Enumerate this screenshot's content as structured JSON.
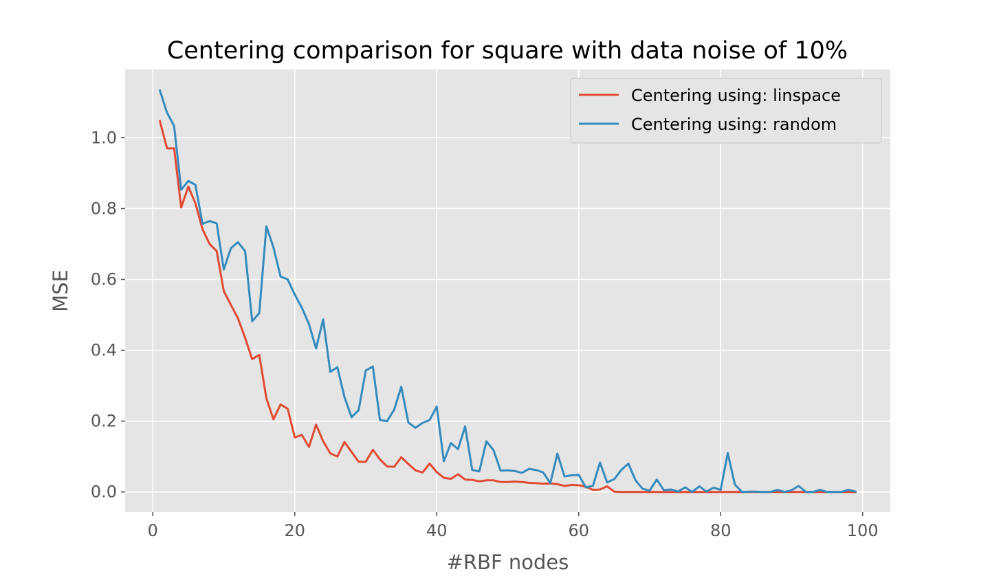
{
  "chart_data": {
    "type": "line",
    "title": "Centering comparison for square with data noise of 10%",
    "xlabel": "#RBF nodes",
    "ylabel": "MSE",
    "xlim": [
      -3.9,
      103.9
    ],
    "ylim": [
      -0.0568,
      1.1928
    ],
    "xticks": [
      0,
      20,
      40,
      60,
      80,
      100
    ],
    "xtick_labels": [
      "0",
      "20",
      "40",
      "60",
      "80",
      "100"
    ],
    "yticks": [
      0.0,
      0.2,
      0.4,
      0.6,
      0.8,
      1.0
    ],
    "ytick_labels": [
      "0.0",
      "0.2",
      "0.4",
      "0.6",
      "0.8",
      "1.0"
    ],
    "grid": true,
    "legend_position": "top-right",
    "x": [
      1,
      2,
      3,
      4,
      5,
      6,
      7,
      8,
      9,
      10,
      11,
      12,
      13,
      14,
      15,
      16,
      17,
      18,
      19,
      20,
      21,
      22,
      23,
      24,
      25,
      26,
      27,
      28,
      29,
      30,
      31,
      32,
      33,
      34,
      35,
      36,
      37,
      38,
      39,
      40,
      41,
      42,
      43,
      44,
      45,
      46,
      47,
      48,
      49,
      50,
      51,
      52,
      53,
      54,
      55,
      56,
      57,
      58,
      59,
      60,
      61,
      62,
      63,
      64,
      65,
      66,
      67,
      68,
      69,
      70,
      71,
      72,
      73,
      74,
      75,
      76,
      77,
      78,
      79,
      80,
      81,
      82,
      83,
      84,
      85,
      86,
      87,
      88,
      89,
      90,
      91,
      92,
      93,
      94,
      95,
      96,
      97,
      98,
      99
    ],
    "series": [
      {
        "name": "Centering using: linspace",
        "color": "#E24A33",
        "values": [
          1.047,
          0.97,
          0.97,
          0.803,
          0.862,
          0.815,
          0.742,
          0.7,
          0.68,
          0.567,
          0.528,
          0.49,
          0.435,
          0.375,
          0.387,
          0.264,
          0.205,
          0.247,
          0.235,
          0.154,
          0.161,
          0.127,
          0.19,
          0.143,
          0.109,
          0.1,
          0.141,
          0.113,
          0.085,
          0.085,
          0.119,
          0.092,
          0.072,
          0.071,
          0.098,
          0.079,
          0.061,
          0.055,
          0.08,
          0.056,
          0.04,
          0.037,
          0.05,
          0.035,
          0.034,
          0.03,
          0.033,
          0.033,
          0.028,
          0.028,
          0.029,
          0.028,
          0.026,
          0.025,
          0.023,
          0.024,
          0.022,
          0.017,
          0.02,
          0.019,
          0.015,
          0.006,
          0.007,
          0.016,
          0.001,
          0.0,
          0.0,
          0.0,
          0.0,
          0.0,
          0.0,
          0.0,
          0.0,
          0.0,
          0.0,
          0.0,
          0.0,
          0.0,
          0.0,
          0.0,
          0.0,
          0.0,
          0.0,
          0.0,
          0.0,
          0.0,
          0.0,
          0.0,
          0.0,
          0.0,
          0.0,
          0.0,
          0.0,
          0.0,
          0.0,
          0.0,
          0.0,
          0.0,
          0.0
        ]
      },
      {
        "name": "Centering using: random",
        "color": "#348ABD",
        "values": [
          1.133,
          1.071,
          1.033,
          0.853,
          0.878,
          0.867,
          0.757,
          0.765,
          0.758,
          0.628,
          0.688,
          0.705,
          0.68,
          0.482,
          0.505,
          0.75,
          0.69,
          0.608,
          0.6,
          0.557,
          0.52,
          0.474,
          0.405,
          0.487,
          0.339,
          0.352,
          0.268,
          0.211,
          0.231,
          0.343,
          0.354,
          0.203,
          0.2,
          0.232,
          0.297,
          0.196,
          0.181,
          0.195,
          0.203,
          0.241,
          0.087,
          0.138,
          0.121,
          0.185,
          0.062,
          0.058,
          0.143,
          0.118,
          0.06,
          0.061,
          0.059,
          0.054,
          0.065,
          0.062,
          0.055,
          0.025,
          0.108,
          0.044,
          0.047,
          0.048,
          0.013,
          0.017,
          0.083,
          0.027,
          0.036,
          0.062,
          0.08,
          0.033,
          0.009,
          0.004,
          0.035,
          0.005,
          0.007,
          0.001,
          0.013,
          0.0,
          0.016,
          0.001,
          0.012,
          0.006,
          0.11,
          0.021,
          0.0,
          0.001,
          0.001,
          0.0,
          0.0,
          0.006,
          0.0,
          0.005,
          0.017,
          0.0,
          0.0,
          0.006,
          0.0,
          0.0,
          0.0,
          0.006,
          0.001
        ]
      }
    ]
  }
}
